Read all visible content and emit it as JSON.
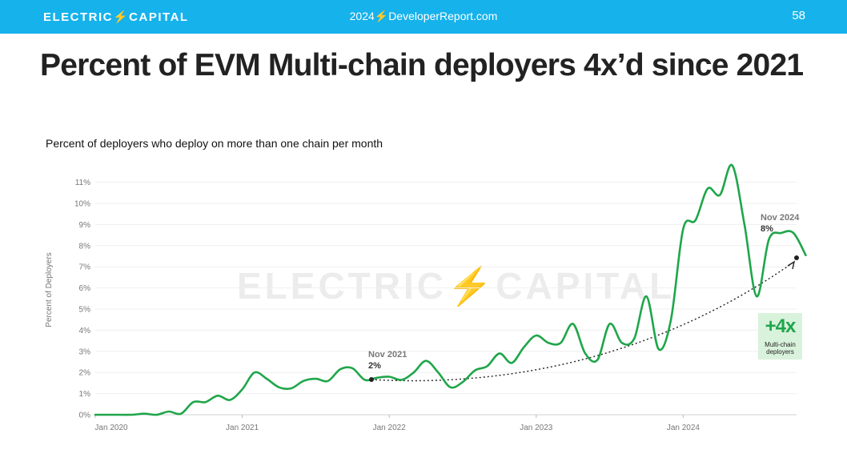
{
  "header": {
    "brand": "ELECTRIC⚡CAPITAL",
    "site": "2024⚡DeveloperReport.com",
    "page_number": "58"
  },
  "title": "Percent of EVM Multi-chain deployers 4x’d since 2021",
  "subtitle": "Percent of deployers who deploy on more than one chain per month",
  "watermark": "ELECTRIC⚡CAPITAL",
  "annotations": {
    "start": {
      "date": "Nov 2021",
      "value": "2%"
    },
    "end": {
      "date": "Nov 2024",
      "value": "8%"
    },
    "badge": {
      "big": "+4x",
      "small_line1": "Multi-chain",
      "small_line2": "deployers"
    }
  },
  "colors": {
    "header": "#16b2ec",
    "line": "#1fa64a",
    "badge_bg": "#d9f2dc"
  },
  "chart_data": {
    "type": "line",
    "ylabel": "Percent of Deployers",
    "xlabel": "",
    "ylim": [
      0,
      11.5
    ],
    "y_ticks": [
      "0%",
      "1%",
      "2%",
      "3%",
      "4%",
      "5%",
      "6%",
      "7%",
      "8%",
      "9%",
      "10%",
      "11%"
    ],
    "x_ticks": [
      "Jan 2020",
      "Jan 2021",
      "Jan 2022",
      "Jan 2023",
      "Jan 2024"
    ],
    "grid": true,
    "series": [
      {
        "x": [
          "2020-01",
          "2020-02",
          "2020-03",
          "2020-04",
          "2020-05",
          "2020-06",
          "2020-07",
          "2020-08",
          "2020-09",
          "2020-10",
          "2020-11",
          "2020-12",
          "2021-01",
          "2021-02",
          "2021-03",
          "2021-04",
          "2021-05",
          "2021-06",
          "2021-07",
          "2021-08",
          "2021-09",
          "2021-10",
          "2021-11",
          "2021-12",
          "2022-01",
          "2022-02",
          "2022-03",
          "2022-04",
          "2022-05",
          "2022-06",
          "2022-07",
          "2022-08",
          "2022-09",
          "2022-10",
          "2022-11",
          "2022-12",
          "2023-01",
          "2023-02",
          "2023-03",
          "2023-04",
          "2023-05",
          "2023-06",
          "2023-07",
          "2023-08",
          "2023-09",
          "2023-10",
          "2023-11",
          "2023-12",
          "2024-01",
          "2024-02",
          "2024-03",
          "2024-04",
          "2024-05",
          "2024-06",
          "2024-07",
          "2024-08",
          "2024-09",
          "2024-10",
          "2024-11"
        ],
        "values": [
          0,
          0,
          0,
          0,
          0.05,
          0,
          0.15,
          0.05,
          0.6,
          0.6,
          0.9,
          0.7,
          1.2,
          2.0,
          1.7,
          1.3,
          1.25,
          1.6,
          1.7,
          1.6,
          2.15,
          2.2,
          1.65,
          1.75,
          1.8,
          1.65,
          2.0,
          2.55,
          2.0,
          1.3,
          1.55,
          2.1,
          2.3,
          2.9,
          2.45,
          3.2,
          3.75,
          3.4,
          3.4,
          4.3,
          2.9,
          2.6,
          4.3,
          3.4,
          3.6,
          5.6,
          3.1,
          4.5,
          8.8,
          9.2,
          10.7,
          10.4,
          11.8,
          9.0,
          5.6,
          8.3,
          8.6,
          8.6,
          7.55
        ]
      }
    ]
  }
}
